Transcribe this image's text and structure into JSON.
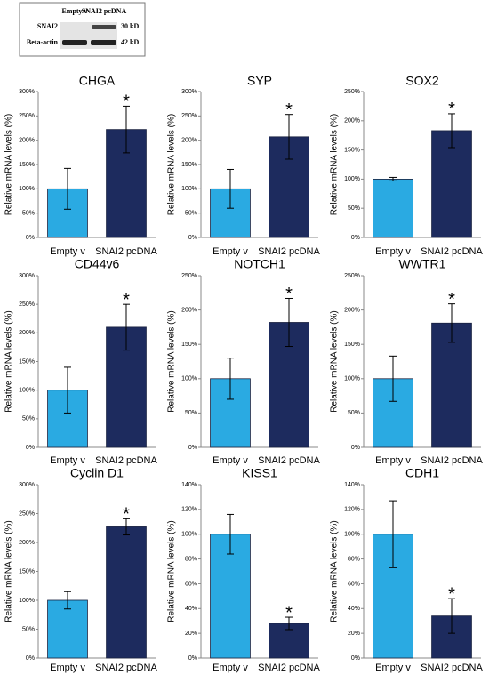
{
  "blot": {
    "lanes": [
      "Empty v",
      "SNAI2 pcDNA"
    ],
    "proteins": [
      "SNAI2",
      "Beta-actin"
    ],
    "sizes": [
      "30 kD",
      "42 kD"
    ]
  },
  "chart_data": [
    {
      "type": "bar",
      "title": "CHGA",
      "ylabel": "Relative mRNA levels (%)",
      "categories": [
        "Empty v",
        "SNAI2 pcDNA"
      ],
      "values": [
        100,
        222
      ],
      "errors": [
        42,
        48
      ],
      "colors": [
        "#2aaae2",
        "#1d2b5e"
      ],
      "annotation": "*",
      "ylim": [
        0,
        300
      ],
      "yticks": [
        {
          "value": 0,
          "label": "0%"
        },
        {
          "value": 50,
          "label": "50%"
        },
        {
          "value": 100,
          "label": "100%"
        },
        {
          "value": 150,
          "label": "150%"
        },
        {
          "value": 200,
          "label": "200%"
        },
        {
          "value": 250,
          "label": "250%"
        },
        {
          "value": 300,
          "label": "300%"
        }
      ]
    },
    {
      "type": "bar",
      "title": "SYP",
      "ylabel": "Relative mRNA levels (%)",
      "categories": [
        "Empty v",
        "SNAI2 pcDNA"
      ],
      "values": [
        100,
        207
      ],
      "errors": [
        40,
        46
      ],
      "colors": [
        "#2aaae2",
        "#1d2b5e"
      ],
      "annotation": "*",
      "ylim": [
        0,
        300
      ],
      "yticks": [
        {
          "value": 0,
          "label": "0%"
        },
        {
          "value": 50,
          "label": "50%"
        },
        {
          "value": 100,
          "label": "100%"
        },
        {
          "value": 150,
          "label": "150%"
        },
        {
          "value": 200,
          "label": "200%"
        },
        {
          "value": 250,
          "label": "250%"
        },
        {
          "value": 300,
          "label": "300%"
        }
      ]
    },
    {
      "type": "bar",
      "title": "SOX2",
      "ylabel": "Relative mRNA levels (%)",
      "categories": [
        "Empty v",
        "SNAI2 pcDNA"
      ],
      "values": [
        100,
        183
      ],
      "errors": [
        3,
        29
      ],
      "colors": [
        "#2aaae2",
        "#1d2b5e"
      ],
      "annotation": "*",
      "ylim": [
        0,
        250
      ],
      "yticks": [
        {
          "value": 0,
          "label": "0%"
        },
        {
          "value": 50,
          "label": "50%"
        },
        {
          "value": 100,
          "label": "100%"
        },
        {
          "value": 150,
          "label": "150%"
        },
        {
          "value": 200,
          "label": "200%"
        },
        {
          "value": 250,
          "label": "250%"
        }
      ]
    },
    {
      "type": "bar",
      "title": "CD44v6",
      "ylabel": "Relative mRNA levels (%)",
      "categories": [
        "Empty v",
        "SNAI2 pcDNA"
      ],
      "values": [
        100,
        210
      ],
      "errors": [
        40,
        40
      ],
      "colors": [
        "#2aaae2",
        "#1d2b5e"
      ],
      "annotation": "*",
      "ylim": [
        0,
        300
      ],
      "yticks": [
        {
          "value": 0,
          "label": "0%"
        },
        {
          "value": 50,
          "label": "50%"
        },
        {
          "value": 100,
          "label": "100%"
        },
        {
          "value": 150,
          "label": "150%"
        },
        {
          "value": 200,
          "label": "200%"
        },
        {
          "value": 250,
          "label": "250%"
        },
        {
          "value": 300,
          "label": "300%"
        }
      ]
    },
    {
      "type": "bar",
      "title": "NOTCH1",
      "ylabel": "Relative mRNA levels (%)",
      "categories": [
        "Empty v",
        "SNAI2 pcDNA"
      ],
      "values": [
        100,
        182
      ],
      "errors": [
        30,
        35
      ],
      "colors": [
        "#2aaae2",
        "#1d2b5e"
      ],
      "annotation": "*",
      "ylim": [
        0,
        250
      ],
      "yticks": [
        {
          "value": 0,
          "label": "0%"
        },
        {
          "value": 50,
          "label": "50%"
        },
        {
          "value": 100,
          "label": "100%"
        },
        {
          "value": 150,
          "label": "150%"
        },
        {
          "value": 200,
          "label": "200%"
        },
        {
          "value": 250,
          "label": "250%"
        }
      ]
    },
    {
      "type": "bar",
      "title": "WWTR1",
      "ylabel": "Relative mRNA levels (%)",
      "categories": [
        "Empty v",
        "SNAI2 pcDNA"
      ],
      "values": [
        100,
        181
      ],
      "errors": [
        33,
        28
      ],
      "colors": [
        "#2aaae2",
        "#1d2b5e"
      ],
      "annotation": "*",
      "ylim": [
        0,
        250
      ],
      "yticks": [
        {
          "value": 0,
          "label": "0%"
        },
        {
          "value": 50,
          "label": "50%"
        },
        {
          "value": 100,
          "label": "100%"
        },
        {
          "value": 150,
          "label": "150%"
        },
        {
          "value": 200,
          "label": "200%"
        },
        {
          "value": 250,
          "label": "250%"
        }
      ]
    },
    {
      "type": "bar",
      "title": "Cyclin D1",
      "ylabel": "Relative mRNA levels (%)",
      "categories": [
        "Empty v",
        "SNAI2 pcDNA"
      ],
      "values": [
        100,
        227
      ],
      "errors": [
        15,
        14
      ],
      "colors": [
        "#2aaae2",
        "#1d2b5e"
      ],
      "annotation": "*",
      "ylim": [
        0,
        300
      ],
      "yticks": [
        {
          "value": 0,
          "label": "0%"
        },
        {
          "value": 50,
          "label": "50%"
        },
        {
          "value": 100,
          "label": "100%"
        },
        {
          "value": 150,
          "label": "150%"
        },
        {
          "value": 200,
          "label": "200%"
        },
        {
          "value": 250,
          "label": "250%"
        },
        {
          "value": 300,
          "label": "300%"
        }
      ]
    },
    {
      "type": "bar",
      "title": "KISS1",
      "ylabel": "Relative mRNA levels (%)",
      "categories": [
        "Empty v",
        "SNAI2 pcDNA"
      ],
      "values": [
        100,
        28
      ],
      "errors": [
        16,
        5
      ],
      "colors": [
        "#2aaae2",
        "#1d2b5e"
      ],
      "annotation": "*",
      "ylim": [
        0,
        140
      ],
      "yticks": [
        {
          "value": 0,
          "label": "0%"
        },
        {
          "value": 20,
          "label": "20%"
        },
        {
          "value": 40,
          "label": "40%"
        },
        {
          "value": 60,
          "label": "60%"
        },
        {
          "value": 80,
          "label": "80%"
        },
        {
          "value": 100,
          "label": "100%"
        },
        {
          "value": 120,
          "label": "120%"
        },
        {
          "value": 140,
          "label": "140%"
        }
      ]
    },
    {
      "type": "bar",
      "title": "CDH1",
      "ylabel": "Relative mRNA levels (%)",
      "categories": [
        "Empty v",
        "SNAI2 pcDNA"
      ],
      "values": [
        100,
        34
      ],
      "errors": [
        27,
        14
      ],
      "colors": [
        "#2aaae2",
        "#1d2b5e"
      ],
      "annotation": "*",
      "ylim": [
        0,
        140
      ],
      "yticks": [
        {
          "value": 0,
          "label": "0%"
        },
        {
          "value": 20,
          "label": "20%"
        },
        {
          "value": 40,
          "label": "40%"
        },
        {
          "value": 60,
          "label": "60%"
        },
        {
          "value": 80,
          "label": "80%"
        },
        {
          "value": 100,
          "label": "100%"
        },
        {
          "value": 120,
          "label": "120%"
        },
        {
          "value": 140,
          "label": "140%"
        }
      ]
    }
  ]
}
